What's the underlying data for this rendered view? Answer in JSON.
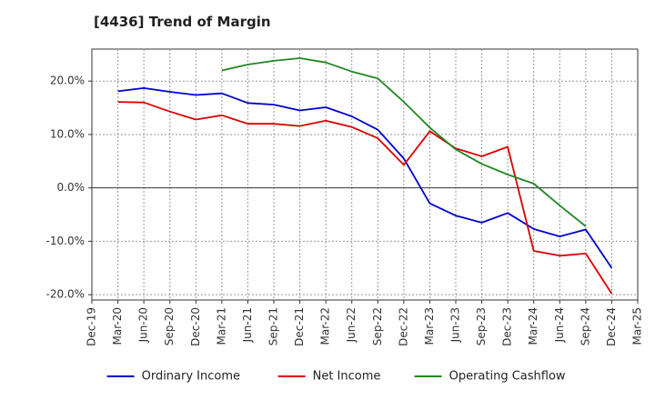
{
  "chart_data": {
    "type": "line",
    "title": "[4436]  Trend of Margin",
    "xlabel": "",
    "ylabel": "",
    "x_ticks": [
      "Dec-19",
      "Mar-20",
      "Jun-20",
      "Sep-20",
      "Dec-20",
      "Mar-21",
      "Jun-21",
      "Sep-21",
      "Dec-21",
      "Mar-22",
      "Jun-22",
      "Sep-22",
      "Dec-22",
      "Mar-23",
      "Jun-23",
      "Sep-23",
      "Dec-23",
      "Mar-24",
      "Jun-24",
      "Sep-24",
      "Dec-24",
      "Mar-25"
    ],
    "y_ticks": [
      20,
      10,
      0,
      -10,
      -20
    ],
    "y_tick_labels": [
      "20.0%",
      "10.0%",
      "0.0%",
      "-10.0%",
      "-20.0%"
    ],
    "ylim": [
      -21,
      26
    ],
    "grid": true,
    "legend_position": "bottom",
    "series": [
      {
        "name": "Ordinary Income",
        "color": "#0000cc",
        "values": [
          null,
          18.1,
          18.7,
          18.0,
          17.4,
          17.7,
          15.9,
          15.6,
          14.5,
          15.1,
          13.4,
          10.9,
          5.5,
          -2.9,
          -5.2,
          -6.5,
          -4.7,
          -7.7,
          -9.1,
          -7.8,
          -15.0,
          null
        ]
      },
      {
        "name": "Net Income",
        "color": "#dd0000",
        "values": [
          null,
          16.1,
          16.0,
          14.3,
          12.8,
          13.6,
          12.0,
          12.0,
          11.6,
          12.6,
          11.4,
          9.3,
          4.3,
          10.6,
          7.4,
          5.9,
          7.7,
          -11.8,
          -12.7,
          -12.3,
          -19.8,
          null
        ]
      },
      {
        "name": "Operating Cashflow",
        "color": "#228822",
        "values": [
          null,
          null,
          null,
          null,
          null,
          22.0,
          23.1,
          23.8,
          24.3,
          23.5,
          21.8,
          20.5,
          16.1,
          11.3,
          7.2,
          4.5,
          2.5,
          0.8,
          -3.3,
          -7.2,
          null,
          null
        ]
      }
    ]
  }
}
